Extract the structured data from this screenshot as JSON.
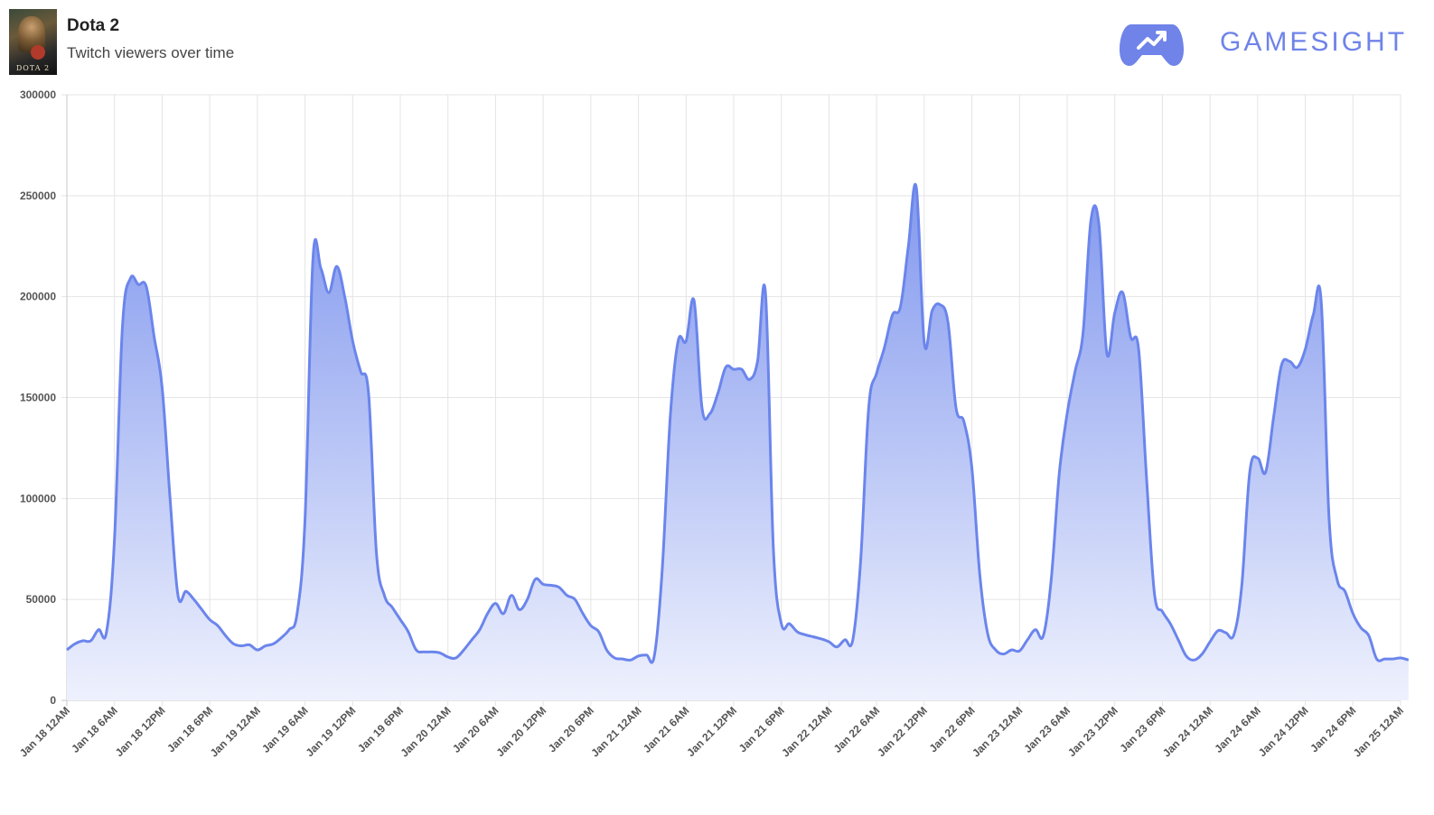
{
  "header": {
    "title": "Dota 2",
    "subtitle": "Twitch viewers over time",
    "thumbnail_caption": "DOTA 2",
    "brand_name": "GAMESIGHT",
    "brand_icon": "gamepad-trend-icon",
    "brand_color": "#6f83e9"
  },
  "chart_data": {
    "type": "area",
    "title": "",
    "xlabel": "",
    "ylabel": "",
    "ylim": [
      0,
      300000
    ],
    "yticks": [
      0,
      50000,
      100000,
      150000,
      200000,
      250000,
      300000
    ],
    "grid": true,
    "line_color": "#6b85ec",
    "fill_color_top": "#8298ee",
    "fill_color_bottom": "#eef1fd",
    "x_tick_labels": [
      "Jan 18 12AM",
      "Jan 18 6AM",
      "Jan 18 12PM",
      "Jan 18 6PM",
      "Jan 19 12AM",
      "Jan 19 6AM",
      "Jan 19 12PM",
      "Jan 19 6PM",
      "Jan 20 12AM",
      "Jan 20 6AM",
      "Jan 20 12PM",
      "Jan 20 6PM",
      "Jan 21 12AM",
      "Jan 21 6AM",
      "Jan 21 12PM",
      "Jan 21 6PM",
      "Jan 22 12AM",
      "Jan 22 6AM",
      "Jan 22 12PM",
      "Jan 22 6PM",
      "Jan 23 12AM",
      "Jan 23 6AM",
      "Jan 23 12PM",
      "Jan 23 6PM",
      "Jan 24 12AM",
      "Jan 24 6AM",
      "Jan 24 12PM",
      "Jan 24 6PM",
      "Jan 25 12AM"
    ],
    "x_unit_note": "x values are hours after Jan 18 12AM",
    "series": [
      {
        "points": [
          [
            0,
            25000
          ],
          [
            1,
            28000
          ],
          [
            2,
            29500
          ],
          [
            3,
            29500
          ],
          [
            4,
            35000
          ],
          [
            5,
            34000
          ],
          [
            6,
            80000
          ],
          [
            7,
            185000
          ],
          [
            8,
            209000
          ],
          [
            9,
            206000
          ],
          [
            10,
            205000
          ],
          [
            11,
            180000
          ],
          [
            12,
            155000
          ],
          [
            13,
            100000
          ],
          [
            14,
            52000
          ],
          [
            15,
            54000
          ],
          [
            16,
            50000
          ],
          [
            17,
            45000
          ],
          [
            18,
            40000
          ],
          [
            19,
            37000
          ],
          [
            20,
            32000
          ],
          [
            21,
            28000
          ],
          [
            22,
            27000
          ],
          [
            23,
            27500
          ],
          [
            24,
            25000
          ],
          [
            25,
            27000
          ],
          [
            26,
            28000
          ],
          [
            27,
            31000
          ],
          [
            28,
            35000
          ],
          [
            29,
            43000
          ],
          [
            30,
            90000
          ],
          [
            31,
            219000
          ],
          [
            32,
            214000
          ],
          [
            33,
            202000
          ],
          [
            34,
            215000
          ],
          [
            35,
            200000
          ],
          [
            36,
            178000
          ],
          [
            37,
            163000
          ],
          [
            38,
            152000
          ],
          [
            39,
            73000
          ],
          [
            40,
            52000
          ],
          [
            41,
            46000
          ],
          [
            42,
            40000
          ],
          [
            43,
            34000
          ],
          [
            44,
            25000
          ],
          [
            45,
            24000
          ],
          [
            46,
            24000
          ],
          [
            47,
            23500
          ],
          [
            48,
            21500
          ],
          [
            49,
            21000
          ],
          [
            50,
            25000
          ],
          [
            51,
            30000
          ],
          [
            52,
            35000
          ],
          [
            53,
            43000
          ],
          [
            54,
            48000
          ],
          [
            55,
            43000
          ],
          [
            56,
            52000
          ],
          [
            57,
            45000
          ],
          [
            58,
            50000
          ],
          [
            59,
            60000
          ],
          [
            60,
            57500
          ],
          [
            61,
            57000
          ],
          [
            62,
            56000
          ],
          [
            63,
            52000
          ],
          [
            64,
            50000
          ],
          [
            65,
            43000
          ],
          [
            66,
            37000
          ],
          [
            67,
            34000
          ],
          [
            68,
            25000
          ],
          [
            69,
            21000
          ],
          [
            70,
            20500
          ],
          [
            71,
            20000
          ],
          [
            72,
            22000
          ],
          [
            73,
            22500
          ],
          [
            74,
            22000
          ],
          [
            75,
            65000
          ],
          [
            76,
            140000
          ],
          [
            77,
            178000
          ],
          [
            78,
            178000
          ],
          [
            79,
            198000
          ],
          [
            80,
            145000
          ],
          [
            81,
            142000
          ],
          [
            82,
            152000
          ],
          [
            83,
            165000
          ],
          [
            84,
            164000
          ],
          [
            85,
            164000
          ],
          [
            86,
            159000
          ],
          [
            87,
            168000
          ],
          [
            88,
            202000
          ],
          [
            89,
            75000
          ],
          [
            90,
            38000
          ],
          [
            91,
            38000
          ],
          [
            92,
            34000
          ],
          [
            93,
            32500
          ],
          [
            94,
            31500
          ],
          [
            95,
            30500
          ],
          [
            96,
            29000
          ],
          [
            97,
            26500
          ],
          [
            98,
            30000
          ],
          [
            99,
            30000
          ],
          [
            100,
            70000
          ],
          [
            101,
            145000
          ],
          [
            102,
            162000
          ],
          [
            103,
            175000
          ],
          [
            104,
            191000
          ],
          [
            105,
            195000
          ],
          [
            106,
            225000
          ],
          [
            107,
            254000
          ],
          [
            108,
            177000
          ],
          [
            109,
            193000
          ],
          [
            110,
            196000
          ],
          [
            111,
            187000
          ],
          [
            112,
            145000
          ],
          [
            113,
            138000
          ],
          [
            114,
            115000
          ],
          [
            115,
            62000
          ],
          [
            116,
            33000
          ],
          [
            117,
            25000
          ],
          [
            118,
            23000
          ],
          [
            119,
            25000
          ],
          [
            120,
            24500
          ],
          [
            121,
            30000
          ],
          [
            122,
            35000
          ],
          [
            123,
            32000
          ],
          [
            124,
            60000
          ],
          [
            125,
            112000
          ],
          [
            126,
            142000
          ],
          [
            127,
            163000
          ],
          [
            128,
            182000
          ],
          [
            129,
            238000
          ],
          [
            130,
            236000
          ],
          [
            131,
            172000
          ],
          [
            132,
            192000
          ],
          [
            133,
            202000
          ],
          [
            134,
            180000
          ],
          [
            135,
            174000
          ],
          [
            136,
            110000
          ],
          [
            137,
            53000
          ],
          [
            138,
            44000
          ],
          [
            139,
            38000
          ],
          [
            140,
            30000
          ],
          [
            141,
            22000
          ],
          [
            142,
            20000
          ],
          [
            143,
            23000
          ],
          [
            144,
            29000
          ],
          [
            145,
            34500
          ],
          [
            146,
            33500
          ],
          [
            147,
            32500
          ],
          [
            148,
            57000
          ],
          [
            149,
            113000
          ],
          [
            150,
            120000
          ],
          [
            151,
            113000
          ],
          [
            152,
            140000
          ],
          [
            153,
            166000
          ],
          [
            154,
            168000
          ],
          [
            155,
            165000
          ],
          [
            156,
            174000
          ],
          [
            157,
            191000
          ],
          [
            158,
            198000
          ],
          [
            159,
            90000
          ],
          [
            160,
            60000
          ],
          [
            161,
            54000
          ],
          [
            162,
            43000
          ],
          [
            163,
            36000
          ],
          [
            164,
            32000
          ],
          [
            165,
            20500
          ],
          [
            166,
            20500
          ],
          [
            167,
            20500
          ],
          [
            168,
            21000
          ],
          [
            169,
            20000
          ]
        ]
      }
    ]
  }
}
